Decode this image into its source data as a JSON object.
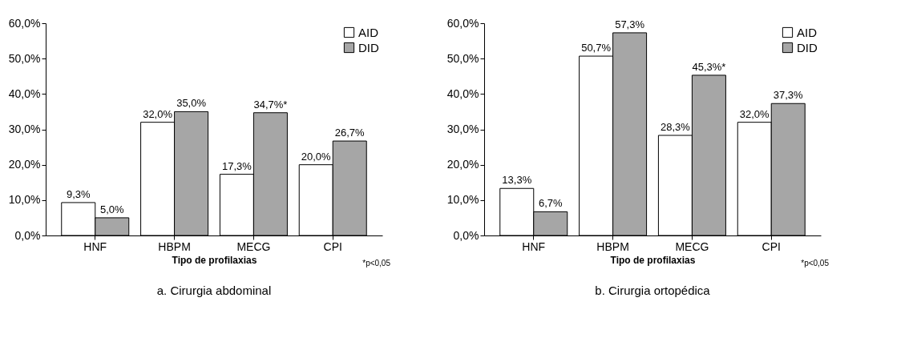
{
  "chart_data": [
    {
      "type": "bar",
      "title": "a. Cirurgia abdominal",
      "xlabel": "Tipo de profilaxias",
      "categories": [
        "HNF",
        "HBPM",
        "MECG",
        "CPI"
      ],
      "series": [
        {
          "name": "AID",
          "color": "#ffffff",
          "values": [
            9.3,
            32.0,
            17.3,
            20.0
          ],
          "value_labels": [
            "9,3%",
            "32,0%",
            "17,3%",
            "20,0%"
          ]
        },
        {
          "name": "DID",
          "color": "#a6a6a6",
          "values": [
            5.0,
            35.0,
            34.7,
            26.7
          ],
          "value_labels": [
            "5,0%",
            "35,0%",
            "34,7%*",
            "26,7%"
          ]
        }
      ],
      "ylim": [
        0,
        60
      ],
      "yticks": [
        {
          "value": 0,
          "label": "0,0%"
        },
        {
          "value": 10,
          "label": "10,0%"
        },
        {
          "value": 20,
          "label": "20,0%"
        },
        {
          "value": 30,
          "label": "30,0%"
        },
        {
          "value": 40,
          "label": "40,0%"
        },
        {
          "value": 50,
          "label": "50,0%"
        },
        {
          "value": 60,
          "label": "60,0%"
        }
      ],
      "annotations": [
        "*p<0,05"
      ],
      "legend": "top right",
      "grid": false
    },
    {
      "type": "bar",
      "title": "b. Cirurgia ortopédica",
      "xlabel": "Tipo de profilaxias",
      "categories": [
        "HNF",
        "HBPM",
        "MECG",
        "CPI"
      ],
      "series": [
        {
          "name": "AID",
          "color": "#ffffff",
          "values": [
            13.3,
            50.7,
            28.3,
            32.0
          ],
          "value_labels": [
            "13,3%",
            "50,7%",
            "28,3%",
            "32,0%"
          ]
        },
        {
          "name": "DID",
          "color": "#a6a6a6",
          "values": [
            6.7,
            57.3,
            45.3,
            37.3
          ],
          "value_labels": [
            "6,7%",
            "57,3%",
            "45,3%*",
            "37,3%"
          ]
        }
      ],
      "ylim": [
        0,
        60
      ],
      "yticks": [
        {
          "value": 0,
          "label": "0,0%"
        },
        {
          "value": 10,
          "label": "10,0%"
        },
        {
          "value": 20,
          "label": "20,0%"
        },
        {
          "value": 30,
          "label": "30,0%"
        },
        {
          "value": 40,
          "label": "40,0%"
        },
        {
          "value": 50,
          "label": "50,0%"
        },
        {
          "value": 60,
          "label": "60,0%"
        }
      ],
      "annotations": [
        "*p<0,05"
      ],
      "legend": "top right",
      "grid": false
    }
  ]
}
